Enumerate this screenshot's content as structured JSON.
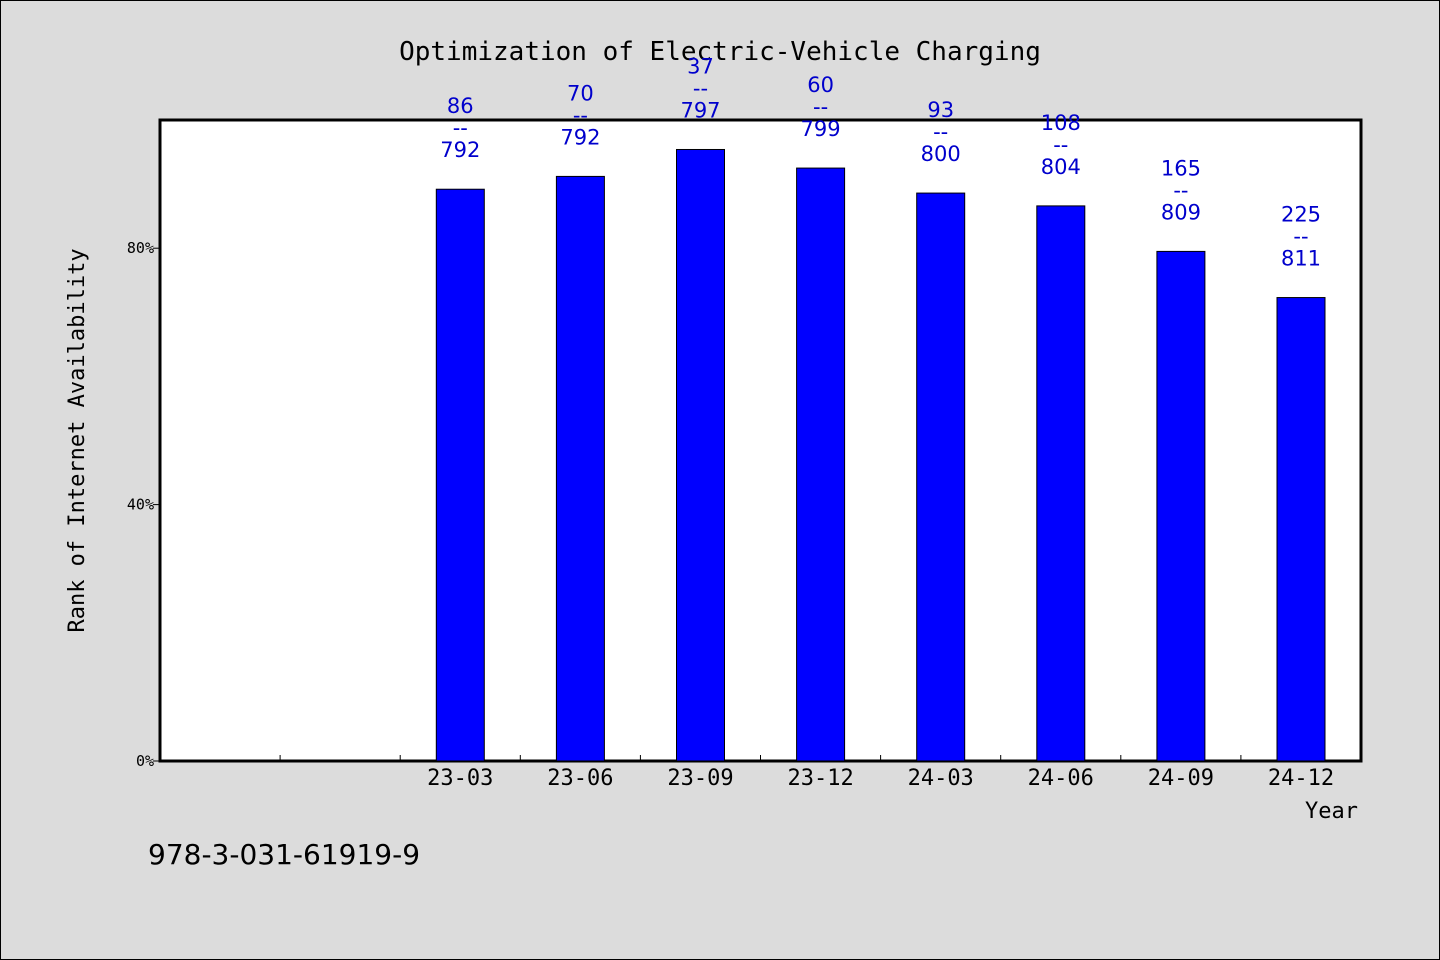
{
  "chart_data": {
    "type": "bar",
    "title": "Optimization of Electric-Vehicle Charging",
    "xlabel": "Year",
    "ylabel": "Rank of Internet Availability",
    "categories": [
      "23-03",
      "23-06",
      "23-09",
      "23-12",
      "24-03",
      "24-06",
      "24-09",
      "24-12"
    ],
    "values": [
      89.2,
      91.2,
      95.4,
      92.5,
      88.6,
      86.6,
      79.5,
      72.3
    ],
    "data_labels": [
      {
        "top": "86",
        "sep": "--",
        "bottom": "792"
      },
      {
        "top": "70",
        "sep": "--",
        "bottom": "792"
      },
      {
        "top": "37",
        "sep": "--",
        "bottom": "797"
      },
      {
        "top": "60",
        "sep": "--",
        "bottom": "799"
      },
      {
        "top": "93",
        "sep": "--",
        "bottom": "800"
      },
      {
        "top": "108",
        "sep": "--",
        "bottom": "804"
      },
      {
        "top": "165",
        "sep": "--",
        "bottom": "809"
      },
      {
        "top": "225",
        "sep": "--",
        "bottom": "811"
      }
    ],
    "ylim": [
      0,
      100
    ],
    "yticks": [
      0,
      40,
      80
    ],
    "ytick_labels": [
      "0%",
      "40%",
      "80%"
    ],
    "empty_leading_slots": 2,
    "grid": false,
    "legend": "none",
    "colors": {
      "bar": "#0000ff",
      "data_label": "#0000cc",
      "plot_bg": "#ffffff",
      "page_bg": "#dcdcdc"
    }
  },
  "footer": {
    "identifier": "978-3-031-61919-9"
  }
}
